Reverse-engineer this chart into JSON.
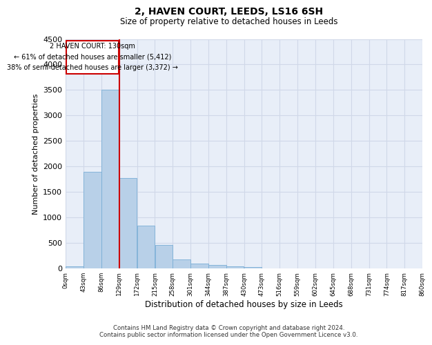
{
  "title": "2, HAVEN COURT, LEEDS, LS16 6SH",
  "subtitle": "Size of property relative to detached houses in Leeds",
  "xlabel": "Distribution of detached houses by size in Leeds",
  "ylabel": "Number of detached properties",
  "footer_line1": "Contains HM Land Registry data © Crown copyright and database right 2024.",
  "footer_line2": "Contains public sector information licensed under the Open Government Licence v3.0.",
  "annotation_line1": "2 HAVEN COURT: 130sqm",
  "annotation_line2": "← 61% of detached houses are smaller (5,412)",
  "annotation_line3": "38% of semi-detached houses are larger (3,372) →",
  "property_size": 130,
  "bar_values": [
    50,
    1900,
    3500,
    1775,
    840,
    460,
    180,
    100,
    70,
    50,
    30,
    0,
    0,
    0,
    0,
    0,
    0,
    0,
    0,
    0
  ],
  "bin_edges": [
    0,
    43,
    86,
    129,
    172,
    215,
    258,
    301,
    344,
    387,
    430,
    473,
    516,
    559,
    602,
    645,
    688,
    731,
    774,
    817,
    860
  ],
  "tick_labels": [
    "0sqm",
    "43sqm",
    "86sqm",
    "129sqm",
    "172sqm",
    "215sqm",
    "258sqm",
    "301sqm",
    "344sqm",
    "387sqm",
    "430sqm",
    "473sqm",
    "516sqm",
    "559sqm",
    "602sqm",
    "645sqm",
    "688sqm",
    "731sqm",
    "774sqm",
    "817sqm",
    "860sqm"
  ],
  "bar_color": "#b8d0e8",
  "bar_edge_color": "#7aaed6",
  "line_color": "#cc0000",
  "box_edge_color": "#cc0000",
  "grid_color": "#d0d8e8",
  "background_color": "#e8eef8",
  "ylim": [
    0,
    4500
  ],
  "yticks": [
    0,
    500,
    1000,
    1500,
    2000,
    2500,
    3000,
    3500,
    4000,
    4500
  ]
}
